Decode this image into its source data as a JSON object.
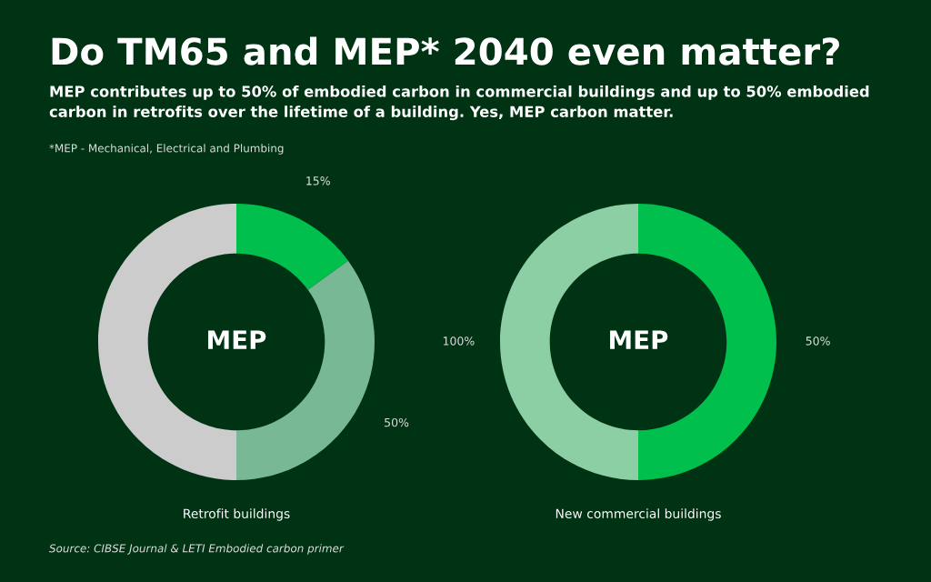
{
  "chart_data": [
    {
      "type": "other",
      "title": "Do TM65 and MEP* 2040 even matter?",
      "subtitle": "MEP contributes up to 50% of embodied carbon in commercial buildings and up to 50% embodied\ncarbon in retrofits over the lifetime of a building. Yes, MEP carbon matter.",
      "annotations": [
        "*MEP - Mechanical, Electrical and Plumbing",
        "Source: CIBSE Journal & LETI Embodied carbon primer"
      ]
    },
    {
      "type": "donut",
      "xlabel": "Retrofit buildings",
      "annotations": [
        "MEP",
        "50%"
      ],
      "categories": [
        null,
        null,
        null
      ],
      "values": [
        15,
        35,
        50
      ],
      "colors": [
        "#00bf4d",
        "#78b894",
        "#cccccc"
      ],
      "value_labels": [
        "15%",
        null,
        null
      ]
    },
    {
      "type": "donut",
      "xlabel": "New commercial buildings",
      "annotations": [
        "MEP",
        "100%"
      ],
      "categories": [
        null,
        null
      ],
      "values": [
        50,
        50
      ],
      "colors": [
        "#00bf4d",
        "#8ccfa5"
      ],
      "value_labels": [
        "50%",
        null
      ]
    }
  ]
}
